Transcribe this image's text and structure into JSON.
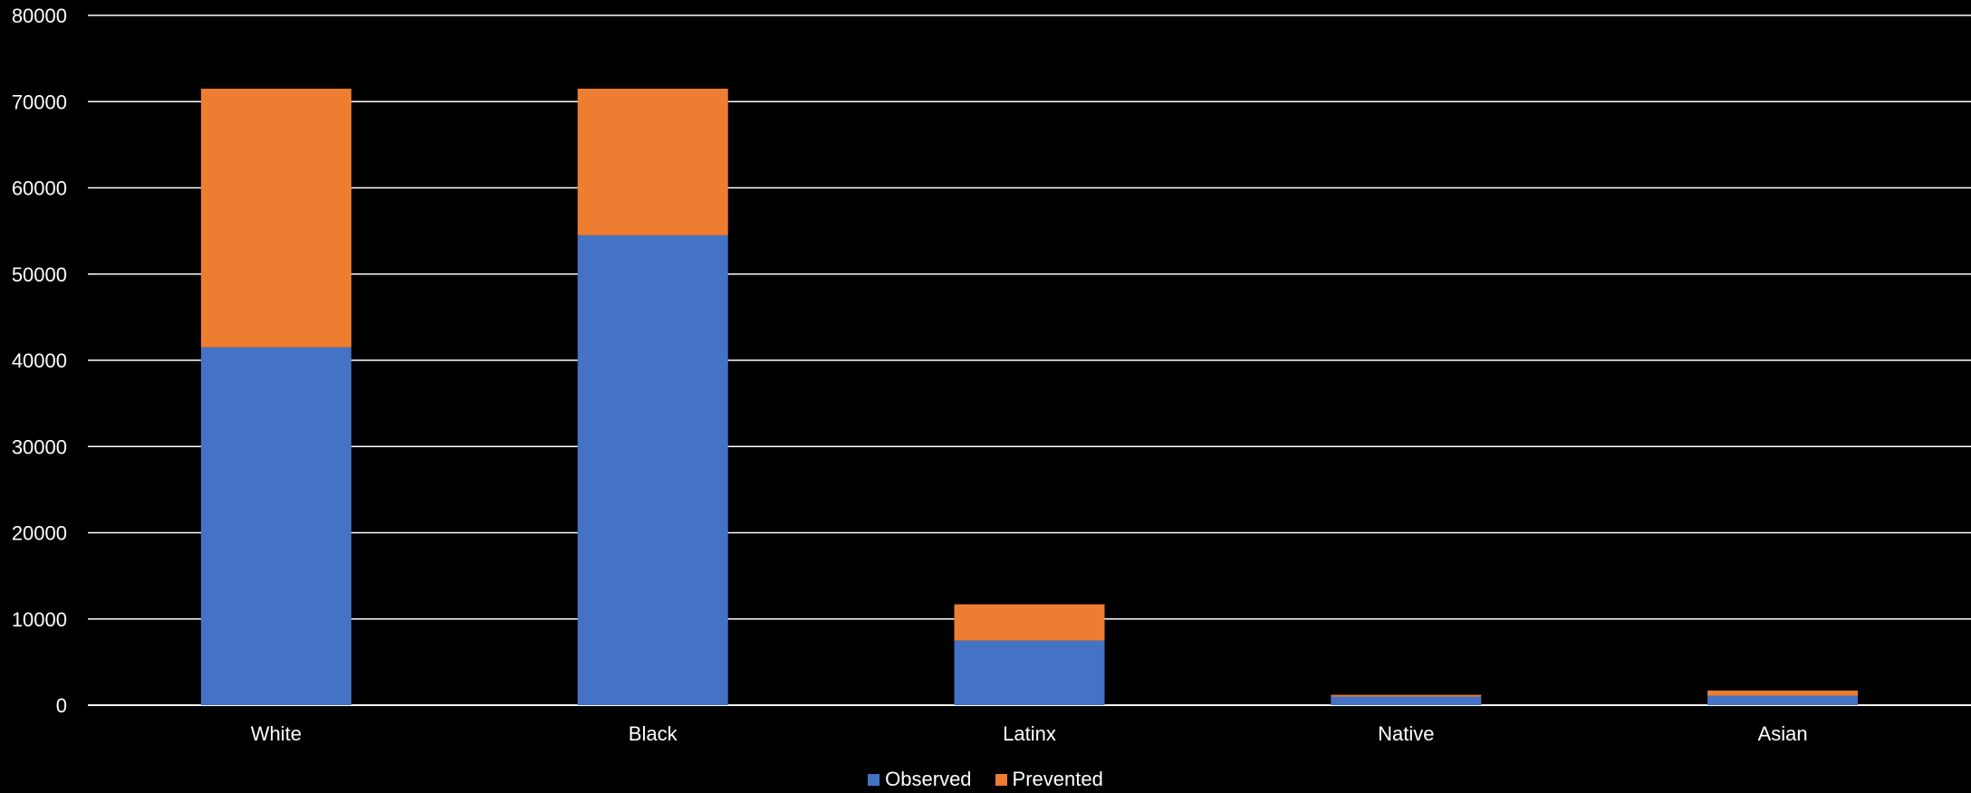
{
  "chart_data": {
    "type": "bar",
    "stacked": true,
    "title": "",
    "xlabel": "",
    "ylabel": "",
    "ylim": [
      0,
      80000
    ],
    "yticks": [
      0,
      10000,
      20000,
      30000,
      40000,
      50000,
      60000,
      70000,
      80000
    ],
    "grid": true,
    "legend_position": "bottom",
    "categories": [
      "White",
      "Black",
      "Latinx",
      "Native",
      "Asian"
    ],
    "series": [
      {
        "name": "Observed",
        "color": "#4472C4",
        "values": [
          41500,
          54500,
          7500,
          1000,
          1100
        ]
      },
      {
        "name": "Prevented",
        "color": "#ED7D31",
        "values": [
          30000,
          17000,
          4200,
          200,
          600
        ]
      }
    ],
    "background": "#000000",
    "gridline_color": "#ffffff",
    "text_color": "#ffffff"
  }
}
